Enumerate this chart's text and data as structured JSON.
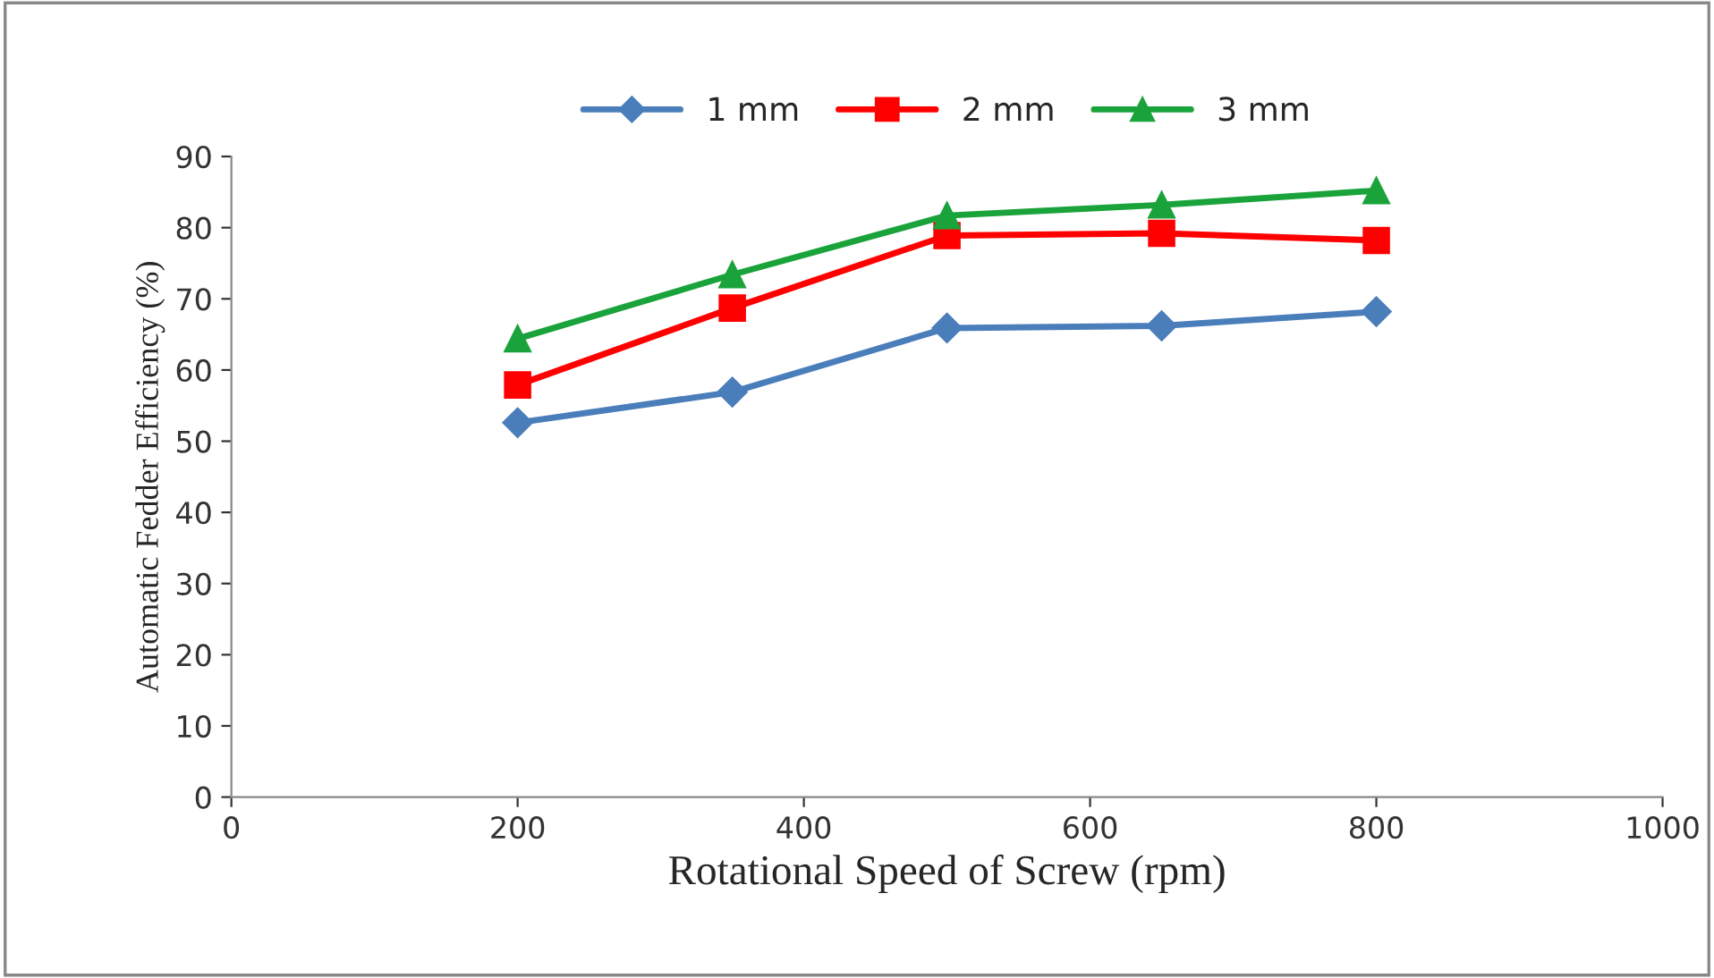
{
  "chart_data": {
    "type": "line",
    "xlabel": "Rotational Speed of Screw (rpm)",
    "ylabel": "Automatic Fedder Efficiency (%)",
    "x": [
      200,
      350,
      500,
      650,
      800
    ],
    "series": [
      {
        "name": "1 mm",
        "color": "#4a7ebb",
        "marker": "diamond",
        "values": [
          52.6,
          56.9,
          65.9,
          66.2,
          68.2
        ]
      },
      {
        "name": "2 mm",
        "color": "#ff0000",
        "marker": "square",
        "values": [
          57.9,
          68.7,
          78.9,
          79.2,
          78.2
        ]
      },
      {
        "name": "3 mm",
        "color": "#1aa33a",
        "marker": "triangle",
        "values": [
          64.4,
          73.4,
          81.7,
          83.2,
          85.2
        ]
      }
    ],
    "xlim": [
      0,
      1000
    ],
    "xticks": [
      0,
      200,
      400,
      600,
      800,
      1000
    ],
    "ylim": [
      0,
      90
    ],
    "yticks": [
      0,
      10,
      20,
      30,
      40,
      50,
      60,
      70,
      80,
      90
    ],
    "legend": "top",
    "grid": false,
    "line_style": "solid"
  }
}
